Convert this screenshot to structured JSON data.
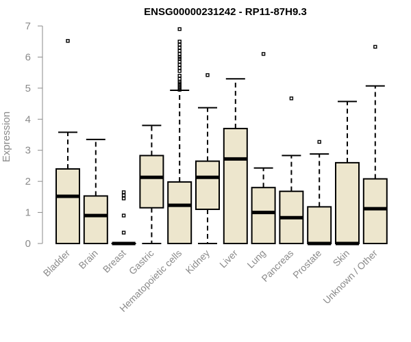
{
  "chart_data": {
    "type": "boxplot",
    "title": "ENSG00000231242 - RP11-87H9.3",
    "xlabel": "",
    "ylabel": "Expression",
    "ylim": [
      0,
      7
    ],
    "yticks": [
      0,
      1,
      2,
      3,
      4,
      5,
      6,
      7
    ],
    "box_color": "#ede6cd",
    "categories": [
      "Bladder",
      "Brain",
      "Breast",
      "Gastric",
      "Hematopoietic cells",
      "Kidney",
      "Liver",
      "Lung",
      "Pancreas",
      "Prostate",
      "Skin",
      "Unknown / Other"
    ],
    "boxes": [
      {
        "name": "Bladder",
        "min": 0,
        "q1": 0,
        "median": 1.52,
        "q3": 2.4,
        "max": 3.58,
        "outliers": [
          6.52
        ]
      },
      {
        "name": "Brain",
        "min": 0,
        "q1": 0,
        "median": 0.9,
        "q3": 1.53,
        "max": 3.35,
        "outliers": []
      },
      {
        "name": "Breast",
        "min": 0,
        "q1": 0,
        "median": 0,
        "q3": 0,
        "max": 0,
        "outliers": [
          0.35,
          0.9,
          1.45,
          1.55,
          1.65
        ]
      },
      {
        "name": "Gastric",
        "min": 0,
        "q1": 1.15,
        "median": 2.13,
        "q3": 2.83,
        "max": 3.8,
        "outliers": []
      },
      {
        "name": "Hematopoietic cells",
        "min": 0,
        "q1": 0,
        "median": 1.23,
        "q3": 1.98,
        "max": 4.93,
        "outliers": [
          4.95,
          5.0,
          5.05,
          5.1,
          5.15,
          5.2,
          5.3,
          5.4,
          5.55,
          5.65,
          5.75,
          5.85,
          5.95,
          6.0,
          6.1,
          6.2,
          6.3,
          6.4,
          6.5,
          6.9
        ]
      },
      {
        "name": "Kidney",
        "min": 0,
        "q1": 1.1,
        "median": 2.13,
        "q3": 2.65,
        "max": 4.37,
        "outliers": [
          5.42
        ]
      },
      {
        "name": "Liver",
        "min": 0,
        "q1": 0,
        "median": 2.72,
        "q3": 3.7,
        "max": 5.3,
        "outliers": []
      },
      {
        "name": "Lung",
        "min": 0,
        "q1": 0,
        "median": 1.0,
        "q3": 1.8,
        "max": 2.43,
        "outliers": [
          6.1
        ]
      },
      {
        "name": "Pancreas",
        "min": 0,
        "q1": 0,
        "median": 0.83,
        "q3": 1.68,
        "max": 2.83,
        "outliers": [
          4.67
        ]
      },
      {
        "name": "Prostate",
        "min": 0,
        "q1": 0,
        "median": 0,
        "q3": 1.18,
        "max": 2.88,
        "outliers": [
          3.27
        ]
      },
      {
        "name": "Skin",
        "min": 0,
        "q1": 0,
        "median": 0,
        "q3": 2.6,
        "max": 4.57,
        "outliers": []
      },
      {
        "name": "Unknown / Other",
        "min": 0,
        "q1": 0,
        "median": 1.12,
        "q3": 2.08,
        "max": 5.07,
        "outliers": [
          6.33
        ]
      }
    ]
  }
}
